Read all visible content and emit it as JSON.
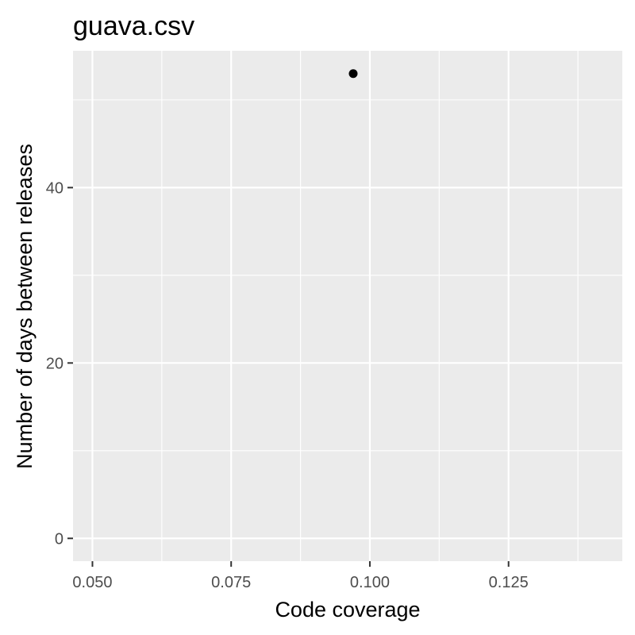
{
  "chart_data": {
    "type": "scatter",
    "title": "guava.csv",
    "xlabel": "Code coverage",
    "ylabel": "Number of days between releases",
    "xlim": [
      0.0465,
      0.1455
    ],
    "ylim": [
      -2.6,
      55.6
    ],
    "x_ticks": [
      0.05,
      0.075,
      0.1,
      0.125
    ],
    "x_tick_labels": [
      "0.050",
      "0.075",
      "0.100",
      "0.125"
    ],
    "y_ticks": [
      0,
      20,
      40
    ],
    "y_tick_labels": [
      "0",
      "20",
      "40"
    ],
    "grid": true,
    "points": [
      {
        "x": 0.097,
        "y": 53
      }
    ],
    "colors": {
      "panel_background": "#ebebeb",
      "grid_major": "#ffffff",
      "point": "#000000",
      "tick": "#333333"
    }
  }
}
